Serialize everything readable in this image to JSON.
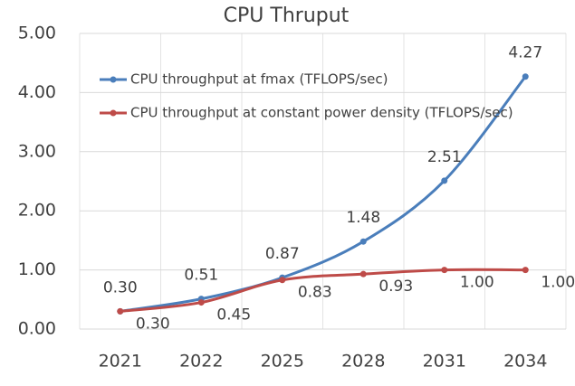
{
  "chart_data": {
    "type": "line",
    "title": "CPU Thruput",
    "categories": [
      "2021",
      "2022",
      "2025",
      "2028",
      "2031",
      "2034"
    ],
    "series": [
      {
        "name": "CPU throughput at fmax (TFLOPS/sec)",
        "color": "#4a7ebb",
        "values": [
          0.3,
          0.51,
          0.87,
          1.48,
          2.51,
          4.27
        ],
        "value_labels": [
          "0.30",
          "0.51",
          "0.87",
          "1.48",
          "2.51",
          "4.27"
        ]
      },
      {
        "name": "CPU throughput at constant power density (TFLOPS/sec)",
        "color": "#be4b48",
        "values": [
          0.3,
          0.45,
          0.83,
          0.93,
          1.0,
          1.0
        ],
        "value_labels": [
          "0.30",
          "0.45",
          "0.83",
          "0.93",
          "1.00",
          "1.00"
        ]
      }
    ],
    "ylim": [
      0,
      5
    ],
    "yticks": [
      {
        "value": 0,
        "label": "0.00"
      },
      {
        "value": 1,
        "label": "1.00"
      },
      {
        "value": 2,
        "label": "2.00"
      },
      {
        "value": 3,
        "label": "3.00"
      },
      {
        "value": 4,
        "label": "4.00"
      },
      {
        "value": 5,
        "label": "5.00"
      }
    ],
    "grid": true,
    "legend": "upper left"
  }
}
